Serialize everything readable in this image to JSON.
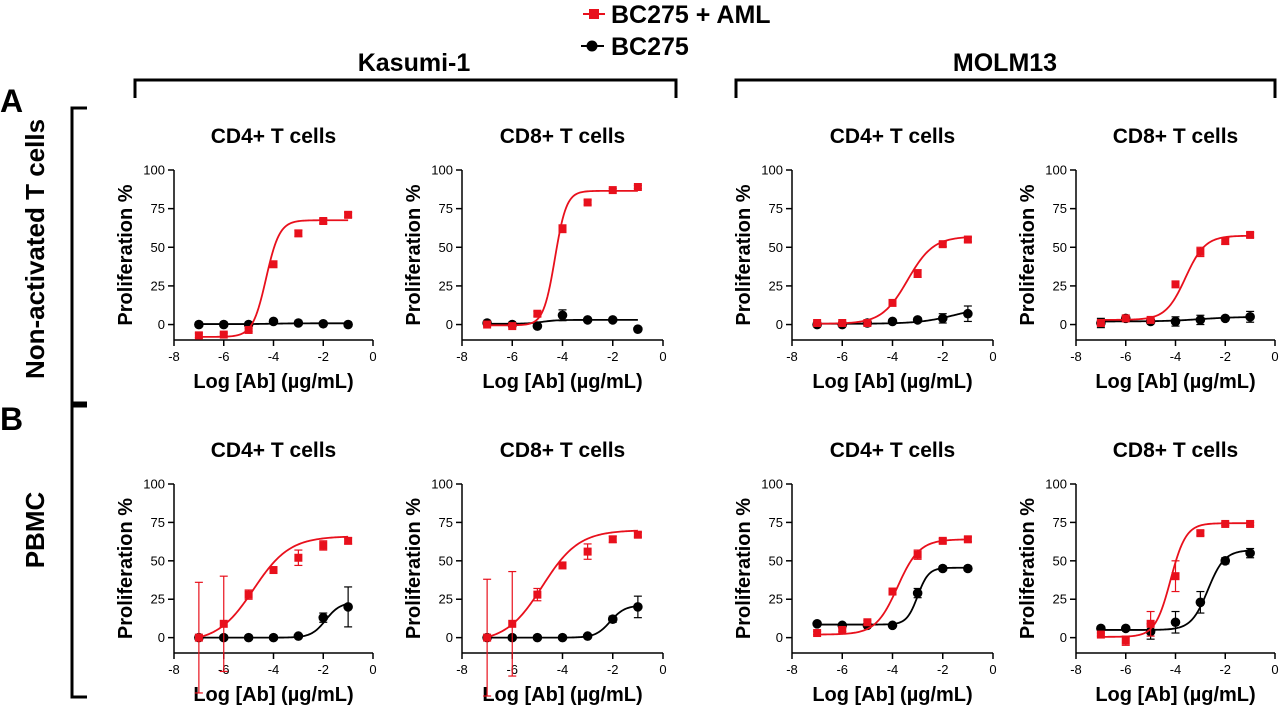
{
  "legend": [
    {
      "label": "BC275 + AML",
      "color": "#e8101c",
      "marker": "square"
    },
    {
      "label": "BC275",
      "color": "#000000",
      "marker": "circle"
    }
  ],
  "groups": [
    "Kasumi-1",
    "MOLM13"
  ],
  "panels": [
    {
      "letter": "A",
      "row_label": "Non-activated T cells"
    },
    {
      "letter": "B",
      "row_label": "PBMC"
    }
  ],
  "axis_text": {
    "xlabel": "Log [Ab] (µg/mL)",
    "ylabel": "Proliferation %",
    "xticks": [
      "-8",
      "-6",
      "-4",
      "-2",
      "0"
    ],
    "yticks": [
      "0",
      "25",
      "50",
      "75",
      "100"
    ]
  },
  "chart_data": [
    {
      "type": "scatter",
      "panel": "A",
      "group": "Kasumi-1",
      "title": "CD4+ T cells",
      "xlabel": "Log [Ab] (µg/mL)",
      "ylabel": "Proliferation %",
      "xlim": [
        -8,
        0
      ],
      "ylim": [
        -10,
        100
      ],
      "x": [
        -7,
        -6,
        -5,
        -4,
        -3,
        -2,
        -1
      ],
      "series": [
        {
          "name": "BC275 + AML",
          "values": [
            -7,
            -6.5,
            -3.5,
            39,
            59,
            67,
            71
          ],
          "errors": [
            1.5,
            1,
            1,
            2,
            2,
            1.5,
            1.5
          ],
          "fit": {
            "bottom": -8,
            "top": 67.5,
            "ec50": -4.3,
            "hill": 1.6
          }
        },
        {
          "name": "BC275",
          "values": [
            0,
            0,
            0,
            2,
            1,
            0.5,
            0
          ],
          "errors": [
            0.5,
            0.5,
            0.5,
            1,
            0.5,
            0.5,
            0.5
          ],
          "fit": {
            "bottom": 0.3,
            "top": 0.8,
            "ec50": -4,
            "hill": 1
          }
        }
      ]
    },
    {
      "type": "scatter",
      "panel": "A",
      "group": "Kasumi-1",
      "title": "CD8+ T cells",
      "xlabel": "Log [Ab] (µg/mL)",
      "ylabel": "Proliferation %",
      "xlim": [
        -8,
        0
      ],
      "ylim": [
        -10,
        100
      ],
      "x": [
        -7,
        -6,
        -5,
        -4,
        -3,
        -2,
        -1
      ],
      "series": [
        {
          "name": "BC275 + AML",
          "values": [
            0,
            -1,
            7,
            62,
            79,
            87,
            89
          ],
          "errors": [
            1,
            1,
            1.5,
            2.5,
            1.5,
            1,
            1
          ],
          "fit": {
            "bottom": -0.5,
            "top": 86.5,
            "ec50": -4.3,
            "hill": 1.9
          }
        },
        {
          "name": "BC275",
          "values": [
            1,
            0,
            -1,
            6,
            3,
            3,
            -3
          ],
          "errors": [
            1,
            0.5,
            0.5,
            3.5,
            1,
            1,
            1
          ],
          "fit": {
            "bottom": 0.5,
            "top": 3,
            "ec50": -4.8,
            "hill": 1.5
          }
        }
      ]
    },
    {
      "type": "scatter",
      "panel": "A",
      "group": "MOLM13",
      "title": "CD4+ T cells",
      "xlabel": "Log [Ab] (µg/mL)",
      "ylabel": "Proliferation %",
      "xlim": [
        -8,
        0
      ],
      "ylim": [
        -10,
        100
      ],
      "x": [
        -7,
        -6,
        -5,
        -4,
        -3,
        -2,
        -1
      ],
      "series": [
        {
          "name": "BC275 + AML",
          "values": [
            1,
            1,
            1,
            14,
            33,
            52,
            55
          ],
          "errors": [
            1,
            1,
            1,
            1.5,
            2.5,
            1.5,
            1.5
          ],
          "fit": {
            "bottom": 0.5,
            "top": 57,
            "ec50": -3.4,
            "hill": 0.85
          }
        },
        {
          "name": "BC275",
          "values": [
            0,
            0,
            1,
            2,
            3,
            4,
            7
          ],
          "errors": [
            1,
            1,
            1,
            1,
            1.5,
            3,
            5
          ],
          "fit": {
            "bottom": 0.5,
            "top": 12,
            "ec50": -1.5,
            "hill": 0.6
          }
        }
      ]
    },
    {
      "type": "scatter",
      "panel": "A",
      "group": "MOLM13",
      "title": "CD8+ T cells",
      "xlabel": "Log [Ab] (µg/mL)",
      "ylabel": "Proliferation %",
      "xlim": [
        -8,
        0
      ],
      "ylim": [
        -10,
        100
      ],
      "x": [
        -7,
        -6,
        -5,
        -4,
        -3,
        -2,
        -1
      ],
      "series": [
        {
          "name": "BC275 + AML",
          "values": [
            1,
            4,
            3,
            26,
            47,
            54,
            58
          ],
          "errors": [
            1,
            1,
            1,
            1.5,
            3,
            2,
            1.5
          ],
          "fit": {
            "bottom": 3,
            "top": 57.5,
            "ec50": -3.6,
            "hill": 1.1
          }
        },
        {
          "name": "BC275",
          "values": [
            1,
            4,
            2,
            2,
            3,
            4,
            5
          ],
          "errors": [
            3,
            1,
            1,
            3,
            3,
            1,
            3.5
          ],
          "fit": {
            "bottom": 2,
            "top": 5,
            "ec50": -3,
            "hill": 0.6
          }
        }
      ]
    },
    {
      "type": "scatter",
      "panel": "B",
      "group": "Kasumi-1",
      "title": "CD4+ T cells",
      "xlabel": "Log [Ab] (µg/mL)",
      "ylabel": "Proliferation %",
      "xlim": [
        -8,
        0
      ],
      "ylim": [
        -10,
        100
      ],
      "x": [
        -7,
        -6,
        -5,
        -4,
        -3,
        -2,
        -1
      ],
      "series": [
        {
          "name": "BC275 + AML",
          "values": [
            0,
            9,
            28,
            44,
            52,
            60,
            63
          ],
          "errors": [
            36,
            31,
            3,
            2,
            5,
            3,
            2
          ],
          "fit": {
            "bottom": -3,
            "top": 66,
            "ec50": -4.8,
            "hill": 0.6
          }
        },
        {
          "name": "BC275",
          "values": [
            0,
            0,
            0,
            0,
            1,
            13,
            20
          ],
          "errors": [
            0.5,
            0.5,
            0.5,
            0.5,
            0.5,
            3,
            13
          ],
          "fit": {
            "bottom": 0,
            "top": 23,
            "ec50": -1.9,
            "hill": 1.5
          }
        }
      ]
    },
    {
      "type": "scatter",
      "panel": "B",
      "group": "Kasumi-1",
      "title": "CD8+ T cells",
      "xlabel": "Log [Ab] (µg/mL)",
      "ylabel": "Proliferation %",
      "xlim": [
        -8,
        0
      ],
      "ylim": [
        -10,
        100
      ],
      "x": [
        -7,
        -6,
        -5,
        -4,
        -3,
        -2,
        -1
      ],
      "series": [
        {
          "name": "BC275 + AML",
          "values": [
            0,
            9,
            28,
            47,
            56,
            64,
            67
          ],
          "errors": [
            38,
            34,
            4,
            2,
            5,
            2,
            1.5
          ],
          "fit": {
            "bottom": -3,
            "top": 70,
            "ec50": -4.8,
            "hill": 0.6
          }
        },
        {
          "name": "BC275",
          "values": [
            0,
            0,
            0,
            0,
            1,
            12,
            20
          ],
          "errors": [
            0.5,
            0.5,
            0.5,
            0.5,
            0.5,
            2,
            7
          ],
          "fit": {
            "bottom": 0,
            "top": 21,
            "ec50": -2.1,
            "hill": 1.5
          }
        }
      ]
    },
    {
      "type": "scatter",
      "panel": "B",
      "group": "MOLM13",
      "title": "CD4+ T cells",
      "xlabel": "Log [Ab] (µg/mL)",
      "ylabel": "Proliferation %",
      "xlim": [
        -8,
        0
      ],
      "ylim": [
        -10,
        100
      ],
      "x": [
        -7,
        -6,
        -5,
        -4,
        -3,
        -2,
        -1
      ],
      "series": [
        {
          "name": "BC275 + AML",
          "values": [
            3,
            5,
            10,
            30,
            54,
            63,
            64
          ],
          "errors": [
            1,
            1,
            1,
            2,
            3,
            1.5,
            1.5
          ],
          "fit": {
            "bottom": 2,
            "top": 64,
            "ec50": -3.8,
            "hill": 1
          }
        },
        {
          "name": "BC275",
          "values": [
            9,
            8,
            8,
            8,
            29,
            45,
            45
          ],
          "errors": [
            1,
            1,
            1,
            1,
            3,
            1,
            1
          ],
          "fit": {
            "bottom": 8.5,
            "top": 45.5,
            "ec50": -3,
            "hill": 2
          }
        }
      ]
    },
    {
      "type": "scatter",
      "panel": "B",
      "group": "MOLM13",
      "title": "CD8+ T cells",
      "xlabel": "Log [Ab] (µg/mL)",
      "ylabel": "Proliferation %",
      "xlim": [
        -8,
        0
      ],
      "ylim": [
        -10,
        100
      ],
      "x": [
        -7,
        -6,
        -5,
        -4,
        -3,
        -2,
        -1
      ],
      "series": [
        {
          "name": "BC275 + AML",
          "values": [
            2,
            -2,
            9,
            40,
            68,
            74,
            74
          ],
          "errors": [
            1,
            3,
            8,
            10,
            1.5,
            1,
            1
          ],
          "fit": {
            "bottom": 0.5,
            "top": 74.5,
            "ec50": -4.2,
            "hill": 1.4
          }
        },
        {
          "name": "BC275",
          "values": [
            6,
            6,
            4,
            10,
            23,
            50,
            55
          ],
          "errors": [
            1,
            1,
            5,
            7,
            7,
            2,
            3
          ],
          "fit": {
            "bottom": 5,
            "top": 57,
            "ec50": -2.7,
            "hill": 1.3
          }
        }
      ]
    }
  ]
}
